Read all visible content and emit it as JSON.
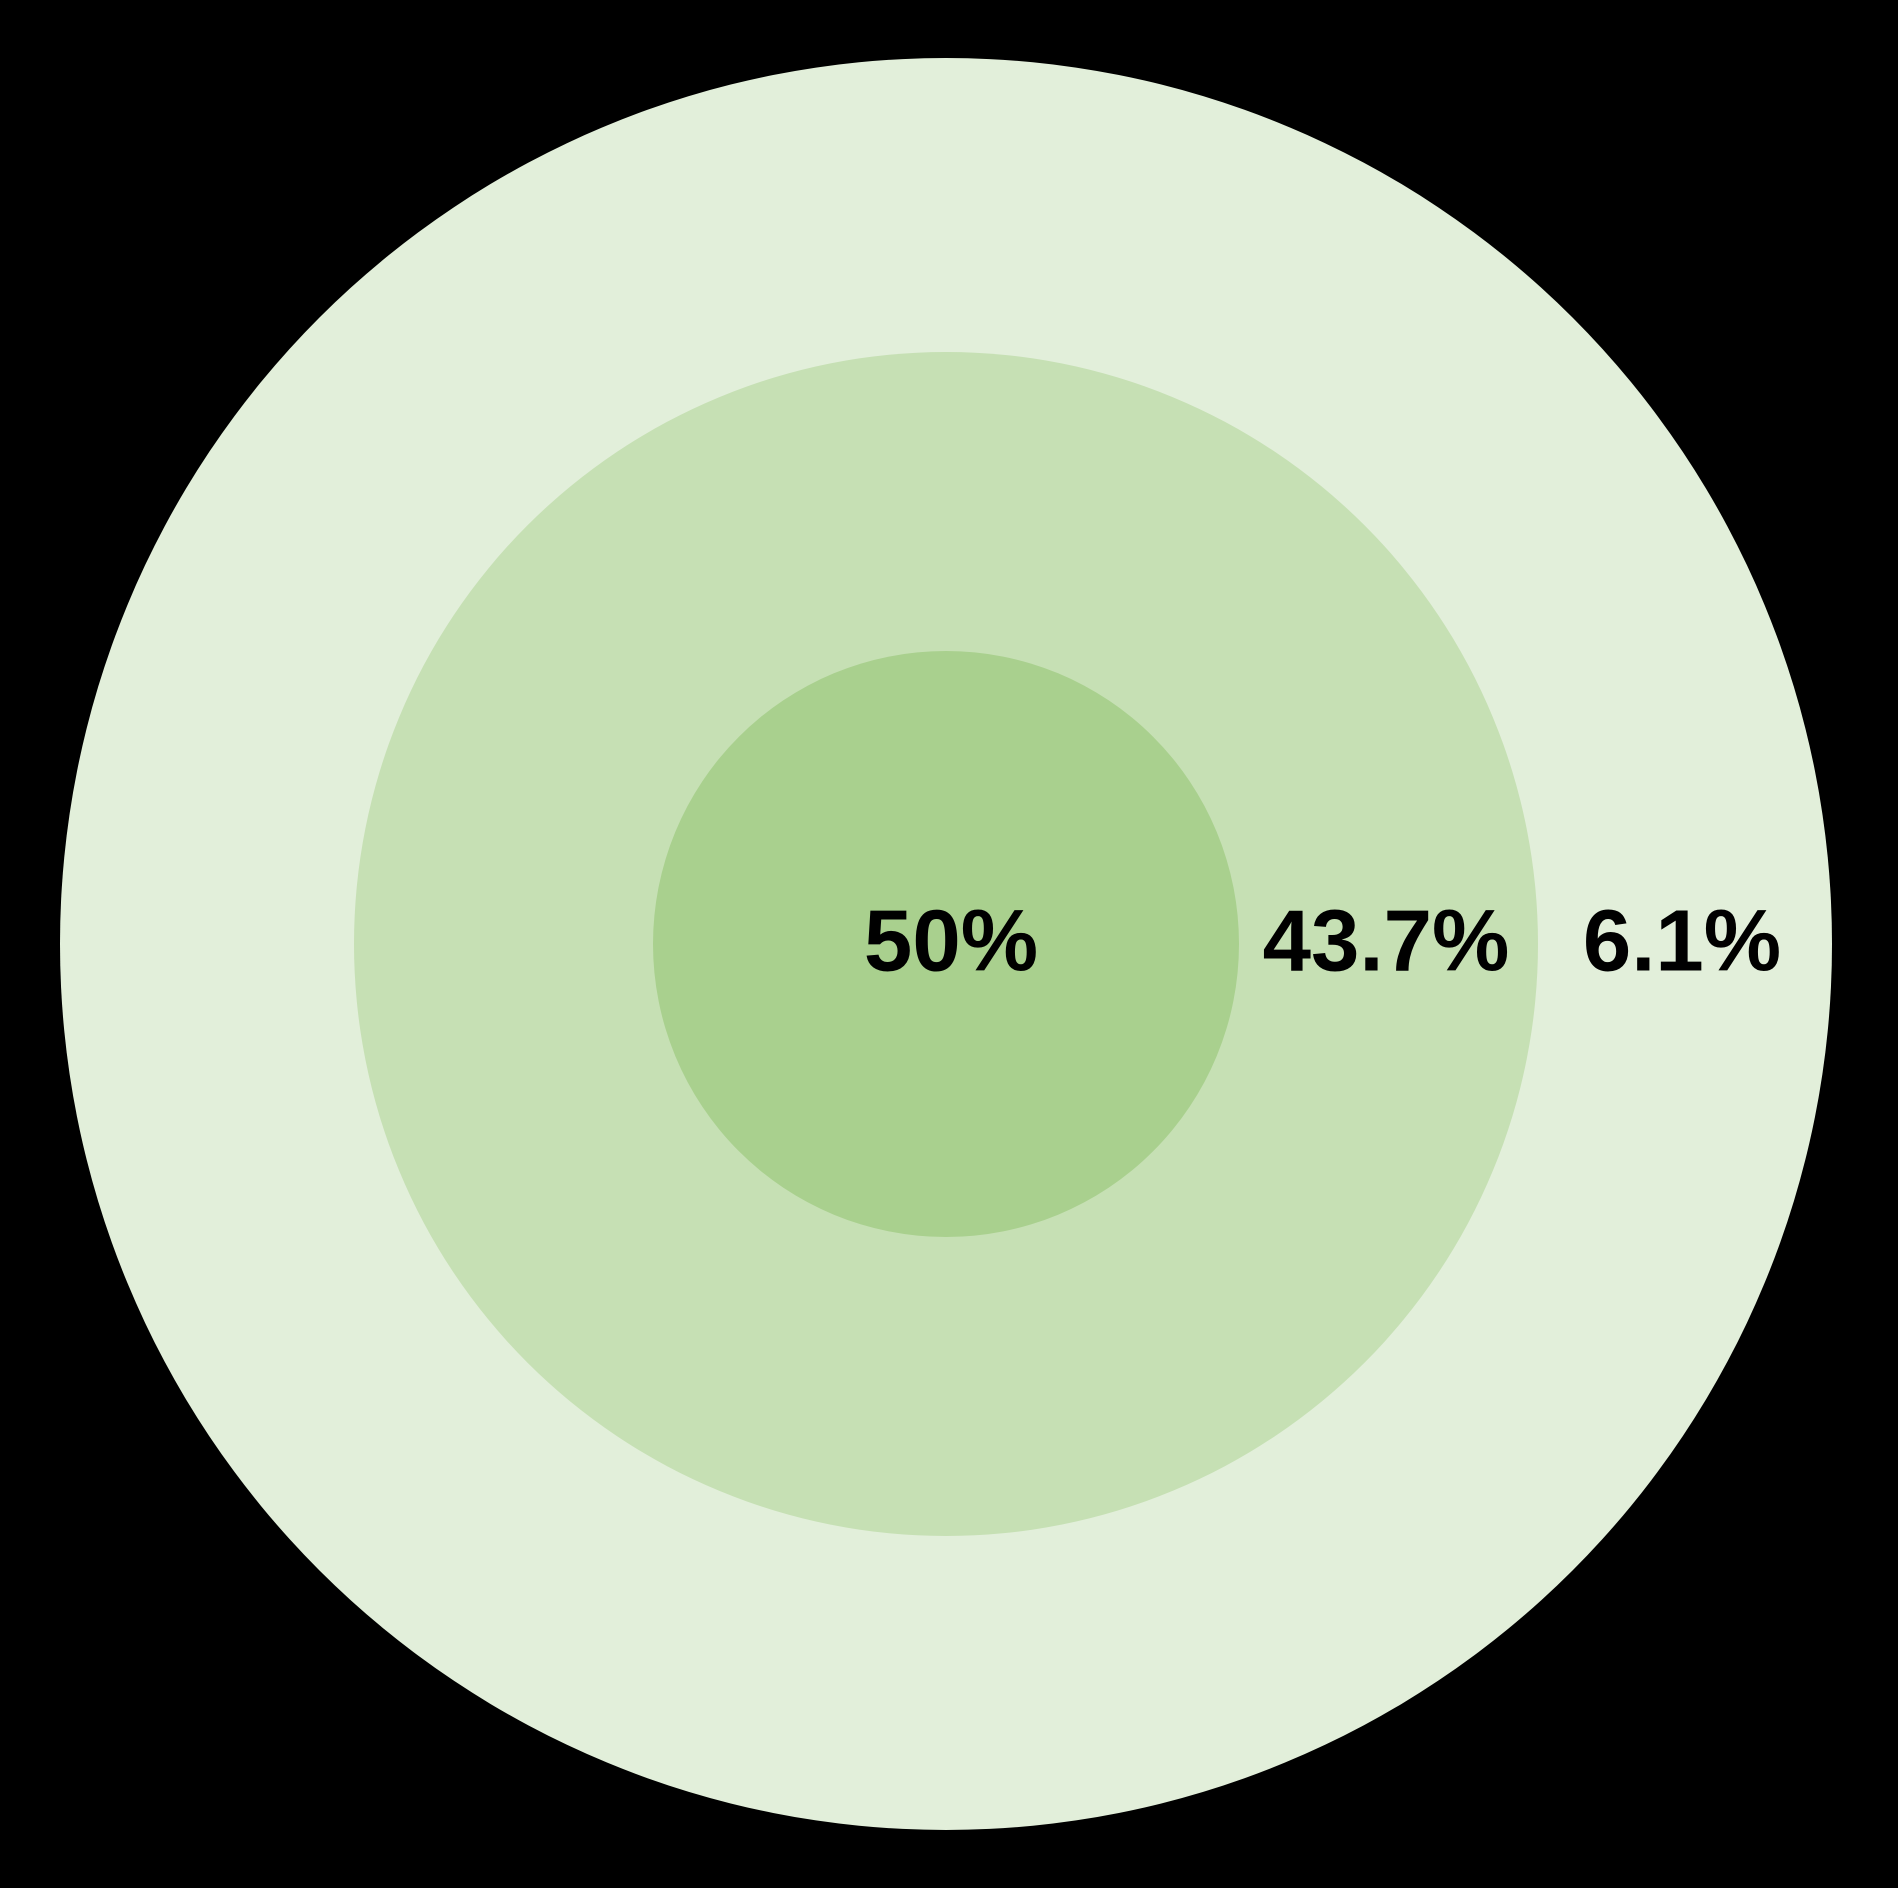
{
  "chart_data": {
    "type": "nested_circles",
    "variant": "concentric proportional circles, shared center, no stroke",
    "background_color": "#000000",
    "label_text_color": "#000000",
    "legend_position": "none",
    "title": "",
    "rings": [
      {
        "ring": "inner",
        "label": "50%",
        "value": 50,
        "color": "#A9D08E",
        "radius_px": 293
      },
      {
        "ring": "middle",
        "label": "43.7%",
        "value": 43.7,
        "color": "#C6E0B4",
        "radius_px": 592
      },
      {
        "ring": "outer",
        "label": "6.1%",
        "value": 6.1,
        "color": "#E2EFDA",
        "radius_px": 886
      }
    ]
  }
}
